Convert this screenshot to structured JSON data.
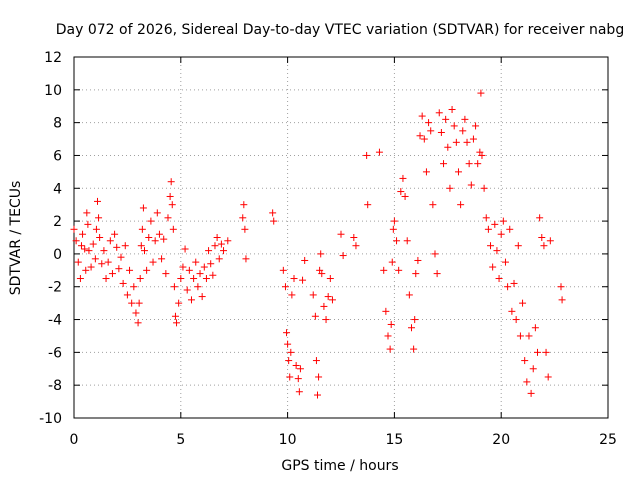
{
  "chart_data": {
    "type": "scatter",
    "title": "Day 072 of 2026, Sidereal Day-to-day VTEC variation (SDTVAR) for receiver nabg",
    "xlabel": "GPS time / hours",
    "ylabel": "SDTVAR / TECUs",
    "xlim": [
      0,
      25
    ],
    "ylim": [
      -10,
      12
    ],
    "xticks": [
      "0",
      "5",
      "10",
      "15",
      "20",
      "25"
    ],
    "yticks": [
      "-10",
      "-8",
      "-6",
      "-4",
      "-2",
      "0",
      "2",
      "4",
      "6",
      "8",
      "10",
      "12"
    ],
    "grid": true,
    "marker": "+",
    "color": "#ff0000",
    "series": [
      {
        "name": "SDTVAR",
        "points": [
          [
            0.0,
            1.5
          ],
          [
            0.1,
            0.8
          ],
          [
            0.2,
            -0.5
          ],
          [
            0.3,
            -1.5
          ],
          [
            0.35,
            0.5
          ],
          [
            0.4,
            1.2
          ],
          [
            0.5,
            0.3
          ],
          [
            0.55,
            -1.0
          ],
          [
            0.6,
            2.5
          ],
          [
            0.65,
            1.8
          ],
          [
            0.7,
            0.2
          ],
          [
            0.8,
            -0.8
          ],
          [
            0.9,
            0.6
          ],
          [
            1.0,
            -0.3
          ],
          [
            1.05,
            1.5
          ],
          [
            1.1,
            3.2
          ],
          [
            1.15,
            2.2
          ],
          [
            1.2,
            1.0
          ],
          [
            1.3,
            -0.6
          ],
          [
            1.4,
            0.2
          ],
          [
            1.5,
            -1.5
          ],
          [
            1.6,
            -0.5
          ],
          [
            1.7,
            0.8
          ],
          [
            1.8,
            -1.2
          ],
          [
            1.9,
            1.2
          ],
          [
            2.0,
            0.4
          ],
          [
            2.1,
            -0.9
          ],
          [
            2.2,
            -0.2
          ],
          [
            2.3,
            -1.8
          ],
          [
            2.4,
            0.5
          ],
          [
            2.5,
            -2.5
          ],
          [
            2.6,
            -1.0
          ],
          [
            2.7,
            -3.0
          ],
          [
            2.8,
            -2.0
          ],
          [
            2.9,
            -3.6
          ],
          [
            3.0,
            -4.2
          ],
          [
            3.05,
            -3.0
          ],
          [
            3.1,
            -1.5
          ],
          [
            3.15,
            0.5
          ],
          [
            3.2,
            1.5
          ],
          [
            3.25,
            2.8
          ],
          [
            3.3,
            0.2
          ],
          [
            3.4,
            -1.0
          ],
          [
            3.5,
            1.0
          ],
          [
            3.6,
            2.0
          ],
          [
            3.7,
            -0.5
          ],
          [
            3.8,
            0.8
          ],
          [
            3.9,
            2.5
          ],
          [
            4.0,
            1.2
          ],
          [
            4.1,
            -0.3
          ],
          [
            4.2,
            0.9
          ],
          [
            4.3,
            -1.2
          ],
          [
            4.4,
            2.2
          ],
          [
            4.5,
            3.5
          ],
          [
            4.55,
            4.4
          ],
          [
            4.6,
            3.0
          ],
          [
            4.65,
            1.5
          ],
          [
            4.7,
            -2.0
          ],
          [
            4.75,
            -3.8
          ],
          [
            4.8,
            -4.2
          ],
          [
            4.9,
            -3.0
          ],
          [
            5.0,
            -1.5
          ],
          [
            5.1,
            -0.8
          ],
          [
            5.2,
            0.3
          ],
          [
            5.3,
            -2.2
          ],
          [
            5.4,
            -1.0
          ],
          [
            5.5,
            -2.8
          ],
          [
            5.6,
            -1.5
          ],
          [
            5.7,
            -0.5
          ],
          [
            5.8,
            -2.0
          ],
          [
            5.9,
            -1.2
          ],
          [
            6.0,
            -2.6
          ],
          [
            6.1,
            -0.8
          ],
          [
            6.2,
            -1.5
          ],
          [
            6.3,
            0.2
          ],
          [
            6.4,
            -0.6
          ],
          [
            6.5,
            -1.3
          ],
          [
            6.6,
            0.5
          ],
          [
            6.7,
            1.0
          ],
          [
            6.8,
            -0.3
          ],
          [
            6.9,
            0.6
          ],
          [
            7.0,
            0.2
          ],
          [
            7.2,
            0.8
          ],
          [
            7.9,
            2.2
          ],
          [
            7.95,
            3.0
          ],
          [
            8.0,
            1.5
          ],
          [
            8.05,
            -0.3
          ],
          [
            9.3,
            2.5
          ],
          [
            9.35,
            2.0
          ],
          [
            9.8,
            -1.0
          ],
          [
            9.9,
            -2.0
          ],
          [
            9.95,
            -4.8
          ],
          [
            10.0,
            -5.5
          ],
          [
            10.05,
            -6.5
          ],
          [
            10.1,
            -7.5
          ],
          [
            10.15,
            -6.0
          ],
          [
            10.2,
            -2.5
          ],
          [
            10.3,
            -1.5
          ],
          [
            10.4,
            -6.8
          ],
          [
            10.5,
            -7.6
          ],
          [
            10.55,
            -8.4
          ],
          [
            10.6,
            -7.0
          ],
          [
            10.7,
            -1.6
          ],
          [
            10.8,
            -0.4
          ],
          [
            11.2,
            -2.5
          ],
          [
            11.3,
            -3.8
          ],
          [
            11.35,
            -6.5
          ],
          [
            11.4,
            -8.6
          ],
          [
            11.45,
            -7.5
          ],
          [
            11.5,
            -1.0
          ],
          [
            11.55,
            0.0
          ],
          [
            11.6,
            -1.2
          ],
          [
            11.7,
            -3.2
          ],
          [
            11.8,
            -4.0
          ],
          [
            11.9,
            -2.6
          ],
          [
            12.0,
            -1.5
          ],
          [
            12.1,
            -2.8
          ],
          [
            12.5,
            1.2
          ],
          [
            12.6,
            -0.1
          ],
          [
            13.1,
            1.0
          ],
          [
            13.2,
            0.5
          ],
          [
            13.7,
            6.0
          ],
          [
            13.75,
            3.0
          ],
          [
            14.3,
            6.2
          ],
          [
            14.5,
            -1.0
          ],
          [
            14.6,
            -3.5
          ],
          [
            14.7,
            -5.0
          ],
          [
            14.8,
            -5.8
          ],
          [
            14.85,
            -4.3
          ],
          [
            14.9,
            -0.5
          ],
          [
            14.95,
            1.5
          ],
          [
            15.0,
            2.0
          ],
          [
            15.1,
            0.8
          ],
          [
            15.2,
            -1.0
          ],
          [
            15.3,
            3.8
          ],
          [
            15.4,
            4.6
          ],
          [
            15.5,
            3.5
          ],
          [
            15.6,
            0.8
          ],
          [
            15.7,
            -2.5
          ],
          [
            15.8,
            -4.5
          ],
          [
            15.9,
            -5.8
          ],
          [
            15.95,
            -4.0
          ],
          [
            16.0,
            -1.2
          ],
          [
            16.1,
            -0.4
          ],
          [
            16.2,
            7.2
          ],
          [
            16.3,
            8.4
          ],
          [
            16.4,
            7.0
          ],
          [
            16.5,
            5.0
          ],
          [
            16.6,
            8.0
          ],
          [
            16.7,
            7.5
          ],
          [
            16.8,
            3.0
          ],
          [
            16.9,
            0.0
          ],
          [
            17.0,
            -1.2
          ],
          [
            17.1,
            8.6
          ],
          [
            17.2,
            7.4
          ],
          [
            17.3,
            5.5
          ],
          [
            17.4,
            8.2
          ],
          [
            17.5,
            6.5
          ],
          [
            17.6,
            4.0
          ],
          [
            17.7,
            8.8
          ],
          [
            17.8,
            7.8
          ],
          [
            17.9,
            6.8
          ],
          [
            18.0,
            5.0
          ],
          [
            18.1,
            3.0
          ],
          [
            18.2,
            7.5
          ],
          [
            18.3,
            8.2
          ],
          [
            18.4,
            6.8
          ],
          [
            18.5,
            5.5
          ],
          [
            18.6,
            4.2
          ],
          [
            18.7,
            7.0
          ],
          [
            18.8,
            7.8
          ],
          [
            18.9,
            5.5
          ],
          [
            19.0,
            6.2
          ],
          [
            19.05,
            9.8
          ],
          [
            19.1,
            6.0
          ],
          [
            19.2,
            4.0
          ],
          [
            19.3,
            2.2
          ],
          [
            19.4,
            1.5
          ],
          [
            19.5,
            0.5
          ],
          [
            19.6,
            -0.8
          ],
          [
            19.7,
            1.8
          ],
          [
            19.8,
            0.2
          ],
          [
            19.9,
            -1.5
          ],
          [
            20.0,
            1.2
          ],
          [
            20.1,
            2.0
          ],
          [
            20.2,
            -0.5
          ],
          [
            20.3,
            -2.0
          ],
          [
            20.4,
            1.5
          ],
          [
            20.5,
            -3.5
          ],
          [
            20.6,
            -1.8
          ],
          [
            20.7,
            -4.0
          ],
          [
            20.8,
            0.5
          ],
          [
            20.9,
            -5.0
          ],
          [
            21.0,
            -3.0
          ],
          [
            21.1,
            -6.5
          ],
          [
            21.2,
            -7.8
          ],
          [
            21.3,
            -5.0
          ],
          [
            21.4,
            -8.5
          ],
          [
            21.5,
            -7.0
          ],
          [
            21.6,
            -4.5
          ],
          [
            21.7,
            -6.0
          ],
          [
            21.8,
            2.2
          ],
          [
            21.9,
            1.0
          ],
          [
            22.0,
            0.5
          ],
          [
            22.1,
            -6.0
          ],
          [
            22.2,
            -7.5
          ],
          [
            22.3,
            0.8
          ],
          [
            22.8,
            -2.0
          ],
          [
            22.85,
            -2.8
          ]
        ]
      }
    ]
  }
}
